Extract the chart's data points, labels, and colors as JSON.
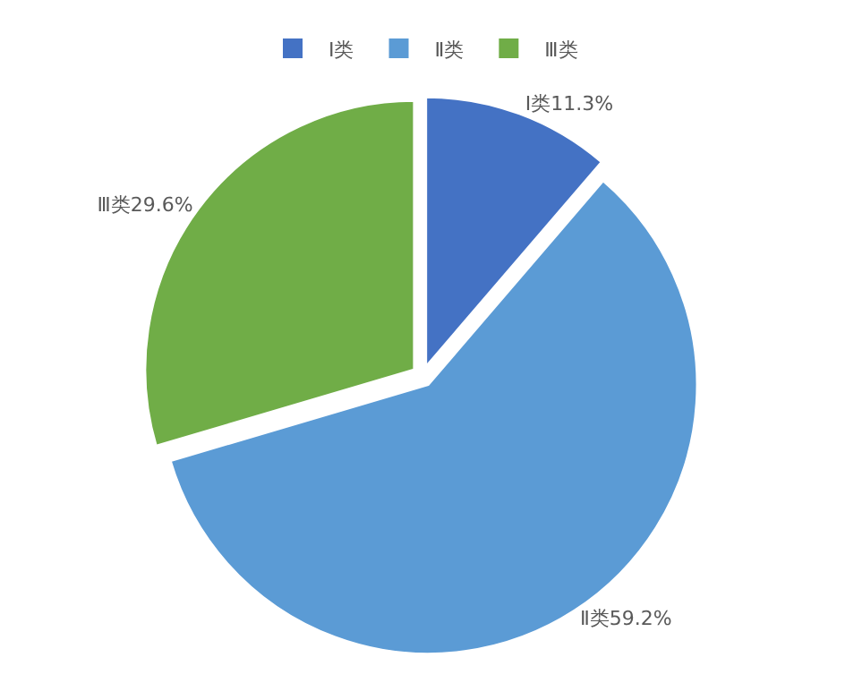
{
  "chart_data": {
    "type": "pie",
    "categories": [
      "Ⅰ类",
      "Ⅱ类",
      "Ⅲ类"
    ],
    "values": [
      11.3,
      59.2,
      29.6
    ],
    "colors": [
      "#4472c4",
      "#5b9bd5",
      "#70ad47"
    ],
    "value_labels": [
      "Ⅰ类11.3%",
      "Ⅱ类59.2%",
      "Ⅲ类29.6%"
    ],
    "legend": "top"
  }
}
